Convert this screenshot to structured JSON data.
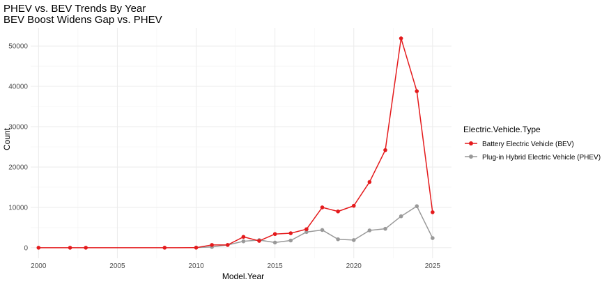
{
  "colors": {
    "bev": "#e41a1c",
    "phev": "#999999",
    "grid_major": "#ebebeb",
    "grid_minor": "#f3f3f3"
  },
  "chart_data": {
    "type": "line",
    "title": "PHEV vs. BEV Trends By Year",
    "subtitle": "BEV Boost Widens Gap vs. PHEV",
    "xlabel": "Model.Year",
    "ylabel": "Count",
    "xlim": [
      1999.5,
      2026.2
    ],
    "ylim": [
      -2600,
      54500
    ],
    "x_ticks": [
      2000,
      2005,
      2010,
      2015,
      2020,
      2025
    ],
    "x_tick_labels": [
      "2000",
      "2005",
      "2010",
      "2015",
      "2020",
      "2025"
    ],
    "x_minor_ticks": [
      2002.5,
      2007.5,
      2012.5,
      2017.5,
      2022.5
    ],
    "y_ticks": [
      0,
      10000,
      20000,
      30000,
      40000,
      50000
    ],
    "y_tick_labels": [
      "0",
      "10000",
      "20000",
      "30000",
      "40000",
      "50000"
    ],
    "y_minor_ticks": [
      5000,
      15000,
      25000,
      35000,
      45000
    ],
    "grid": true,
    "legend": {
      "title": "Electric.Vehicle.Type",
      "placement": "right"
    },
    "series": [
      {
        "name": "Battery Electric Vehicle (BEV)",
        "color": "#e41a1c",
        "x": [
          2000,
          2002,
          2003,
          2008,
          2010,
          2011,
          2012,
          2013,
          2014,
          2015,
          2016,
          2017,
          2018,
          2019,
          2020,
          2021,
          2022,
          2023,
          2024,
          2025
        ],
        "y": [
          10,
          5,
          10,
          15,
          20,
          700,
          700,
          2700,
          1700,
          3400,
          3600,
          4600,
          10000,
          9000,
          10400,
          16300,
          24200,
          51900,
          38800,
          8800
        ]
      },
      {
        "name": "Plug-in Hybrid Electric Vehicle (PHEV)",
        "color": "#999999",
        "x": [
          2010,
          2011,
          2012,
          2013,
          2014,
          2015,
          2016,
          2017,
          2018,
          2019,
          2020,
          2021,
          2022,
          2023,
          2024,
          2025
        ],
        "y": [
          50,
          200,
          700,
          1600,
          1900,
          1300,
          1800,
          3900,
          4400,
          2100,
          1900,
          4300,
          4700,
          7800,
          10300,
          2400
        ]
      }
    ]
  }
}
